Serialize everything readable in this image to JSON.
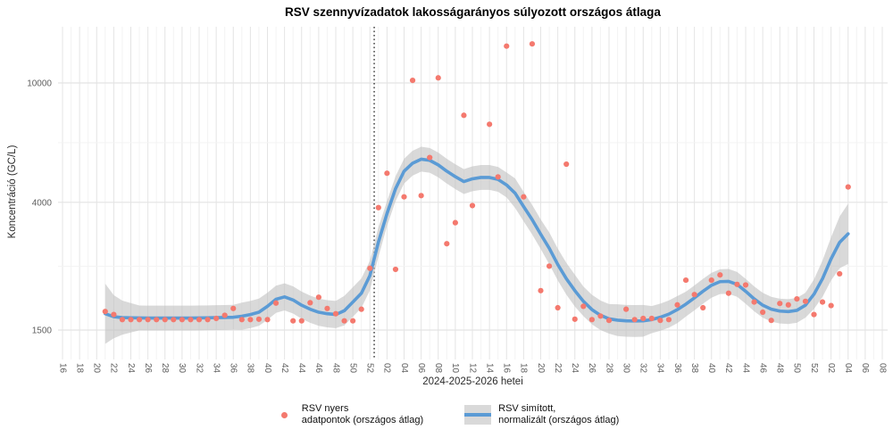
{
  "title": "RSV szennyvízadatok lakosságarányos súlyozott országos átlaga",
  "axes": {
    "y_label": "Koncentráció (GC/L)",
    "x_label": "2024-2025-2026 hetei",
    "y_tick_labels": [
      "1500",
      "4000",
      "10000"
    ],
    "x_tick_step_weeks": 2
  },
  "legend": {
    "raw_label": "RSV nyers\n adatpontok (országos átlag)",
    "smooth_label": "RSV simított,\n normalizált (országos átlag)"
  },
  "colors": {
    "raw_dot": "#F4796E",
    "smooth_line": "#5B9BD5",
    "ribbon": "#BFBFBF",
    "ribbon_opacity": 0.6,
    "vline": "#000000",
    "grid_major": "#E4E4E4",
    "grid_minor": "#F3F3F3",
    "tick_text": "#606060",
    "background": "#FFFFFF"
  },
  "chart_data": {
    "type": "line",
    "title": "RSV szennyvízadatok lakosságarányos súlyozott országos átlaga",
    "xlabel": "2024-2025-2026 hetei",
    "ylabel": "Koncentráció (GC/L)",
    "y_scale": "log10",
    "y_ticks": [
      1500,
      4000,
      10000
    ],
    "y_minor": [
      2449,
      6325
    ],
    "ylim": [
      1190,
      16000
    ],
    "x_weeks_start": "2024-W16",
    "x_weeks_total": 96,
    "x_tick_labels": [
      "16",
      "18",
      "20",
      "22",
      "24",
      "26",
      "28",
      "30",
      "32",
      "34",
      "36",
      "38",
      "40",
      "42",
      "44",
      "46",
      "48",
      "50",
      "52",
      "02",
      "04",
      "06",
      "08",
      "10",
      "12",
      "14",
      "16",
      "18",
      "20",
      "22",
      "24",
      "26",
      "28",
      "30",
      "32",
      "34",
      "36",
      "38",
      "40",
      "42",
      "44",
      "46",
      "48",
      "50",
      "52",
      "02",
      "04",
      "06",
      "08"
    ],
    "vline_between": [
      "2024-W52",
      "2025-W01"
    ],
    "vline_t": 36.5,
    "grid": true,
    "legend_position": "bottom",
    "series": [
      {
        "name": "RSV nyers adatpontok (országos átlag)",
        "type": "scatter",
        "points": [
          [
            5,
            "2024-W21",
            1730
          ],
          [
            6,
            "2024-W22",
            1690
          ],
          [
            7,
            "2024-W23",
            1625
          ],
          [
            8,
            "2024-W24",
            1625
          ],
          [
            9,
            "2024-W25",
            1625
          ],
          [
            10,
            "2024-W26",
            1625
          ],
          [
            11,
            "2024-W27",
            1625
          ],
          [
            12,
            "2024-W28",
            1625
          ],
          [
            13,
            "2024-W29",
            1625
          ],
          [
            14,
            "2024-W30",
            1625
          ],
          [
            15,
            "2024-W31",
            1625
          ],
          [
            16,
            "2024-W32",
            1625
          ],
          [
            17,
            "2024-W33",
            1625
          ],
          [
            18,
            "2024-W34",
            1640
          ],
          [
            19,
            "2024-W35",
            1680
          ],
          [
            20,
            "2024-W36",
            1770
          ],
          [
            21,
            "2024-W37",
            1625
          ],
          [
            22,
            "2024-W38",
            1625
          ],
          [
            23,
            "2024-W39",
            1630
          ],
          [
            24,
            "2024-W40",
            1625
          ],
          [
            25,
            "2024-W41",
            1845
          ],
          [
            27,
            "2024-W43",
            1610
          ],
          [
            28,
            "2024-W44",
            1610
          ],
          [
            29,
            "2024-W45",
            1850
          ],
          [
            30,
            "2024-W46",
            1930
          ],
          [
            31,
            "2024-W47",
            1770
          ],
          [
            32,
            "2024-W48",
            1700
          ],
          [
            33,
            "2024-W49",
            1610
          ],
          [
            34,
            "2024-W50",
            1610
          ],
          [
            35,
            "2024-W51",
            1760
          ],
          [
            36,
            "2024-W52",
            2410
          ],
          [
            37,
            "2025-W01",
            3840
          ],
          [
            38,
            "2025-W02",
            5000
          ],
          [
            39,
            "2025-W03",
            2390
          ],
          [
            40,
            "2025-W04",
            4170
          ],
          [
            41,
            "2025-W05",
            10200
          ],
          [
            42,
            "2025-W06",
            4210
          ],
          [
            43,
            "2025-W07",
            5640
          ],
          [
            44,
            "2025-W08",
            10400
          ],
          [
            45,
            "2025-W09",
            2910
          ],
          [
            46,
            "2025-W10",
            3420
          ],
          [
            47,
            "2025-W11",
            7800
          ],
          [
            48,
            "2025-W12",
            3900
          ],
          [
            50,
            "2025-W14",
            7280
          ],
          [
            51,
            "2025-W15",
            4860
          ],
          [
            52,
            "2025-W16",
            13270
          ],
          [
            54,
            "2025-W18",
            4170
          ],
          [
            55,
            "2025-W19",
            13500
          ],
          [
            56,
            "2025-W20",
            2030
          ],
          [
            57,
            "2025-W21",
            2450
          ],
          [
            58,
            "2025-W22",
            1780
          ],
          [
            59,
            "2025-W23",
            5360
          ],
          [
            60,
            "2025-W24",
            1630
          ],
          [
            61,
            "2025-W25",
            1800
          ],
          [
            62,
            "2025-W26",
            1625
          ],
          [
            63,
            "2025-W27",
            1670
          ],
          [
            64,
            "2025-W28",
            1615
          ],
          [
            66,
            "2025-W30",
            1760
          ],
          [
            67,
            "2025-W31",
            1625
          ],
          [
            68,
            "2025-W32",
            1640
          ],
          [
            69,
            "2025-W33",
            1640
          ],
          [
            70,
            "2025-W34",
            1615
          ],
          [
            71,
            "2025-W35",
            1625
          ],
          [
            72,
            "2025-W36",
            1820
          ],
          [
            73,
            "2025-W37",
            2200
          ],
          [
            74,
            "2025-W38",
            1970
          ],
          [
            75,
            "2025-W39",
            1780
          ],
          [
            76,
            "2025-W40",
            2200
          ],
          [
            77,
            "2025-W41",
            2290
          ],
          [
            78,
            "2025-W42",
            1990
          ],
          [
            79,
            "2025-W43",
            2130
          ],
          [
            80,
            "2025-W44",
            2120
          ],
          [
            81,
            "2025-W45",
            1860
          ],
          [
            82,
            "2025-W46",
            1720
          ],
          [
            83,
            "2025-W47",
            1615
          ],
          [
            84,
            "2025-W48",
            1840
          ],
          [
            85,
            "2025-W49",
            1820
          ],
          [
            86,
            "2025-W50",
            1905
          ],
          [
            87,
            "2025-W51",
            1870
          ],
          [
            88,
            "2025-W52",
            1690
          ],
          [
            89,
            "2026-W01",
            1860
          ],
          [
            90,
            "2026-W02",
            1810
          ],
          [
            91,
            "2026-W03",
            2310
          ],
          [
            92,
            "2026-W04",
            4500
          ]
        ]
      },
      {
        "name": "RSV simított, normalizált (országos átlag)",
        "type": "line+ribbon",
        "t_start": 5,
        "values": [
          1700,
          1662,
          1650,
          1648,
          1646,
          1645,
          1645,
          1645,
          1645,
          1645,
          1645,
          1646,
          1648,
          1650,
          1652,
          1655,
          1668,
          1690,
          1720,
          1800,
          1900,
          1935,
          1890,
          1815,
          1760,
          1720,
          1700,
          1690,
          1740,
          1860,
          1990,
          2280,
          2950,
          3670,
          4440,
          5080,
          5400,
          5570,
          5520,
          5330,
          5080,
          4870,
          4690,
          4790,
          4840,
          4840,
          4770,
          4570,
          4290,
          3870,
          3500,
          3130,
          2810,
          2480,
          2225,
          2030,
          1870,
          1755,
          1680,
          1635,
          1618,
          1610,
          1608,
          1610,
          1625,
          1655,
          1695,
          1755,
          1830,
          1920,
          2020,
          2115,
          2175,
          2180,
          2130,
          2020,
          1905,
          1815,
          1760,
          1735,
          1728,
          1745,
          1815,
          1975,
          2225,
          2590,
          2940,
          3140
        ],
        "band_multiplier": [
          1.26,
          1.18,
          1.14,
          1.12,
          1.1,
          1.1,
          1.1,
          1.1,
          1.1,
          1.1,
          1.1,
          1.1,
          1.1,
          1.1,
          1.1,
          1.1,
          1.11,
          1.11,
          1.11,
          1.11,
          1.11,
          1.11,
          1.11,
          1.11,
          1.11,
          1.11,
          1.11,
          1.11,
          1.12,
          1.12,
          1.12,
          1.12,
          1.12,
          1.1,
          1.1,
          1.1,
          1.1,
          1.1,
          1.1,
          1.1,
          1.1,
          1.1,
          1.1,
          1.1,
          1.1,
          1.1,
          1.1,
          1.1,
          1.12,
          1.12,
          1.12,
          1.12,
          1.13,
          1.13,
          1.13,
          1.13,
          1.12,
          1.12,
          1.12,
          1.12,
          1.13,
          1.13,
          1.13,
          1.13,
          1.11,
          1.11,
          1.11,
          1.11,
          1.1,
          1.1,
          1.1,
          1.1,
          1.1,
          1.1,
          1.1,
          1.1,
          1.1,
          1.1,
          1.1,
          1.1,
          1.1,
          1.1,
          1.1,
          1.12,
          1.15,
          1.18,
          1.22,
          1.26
        ]
      }
    ]
  }
}
